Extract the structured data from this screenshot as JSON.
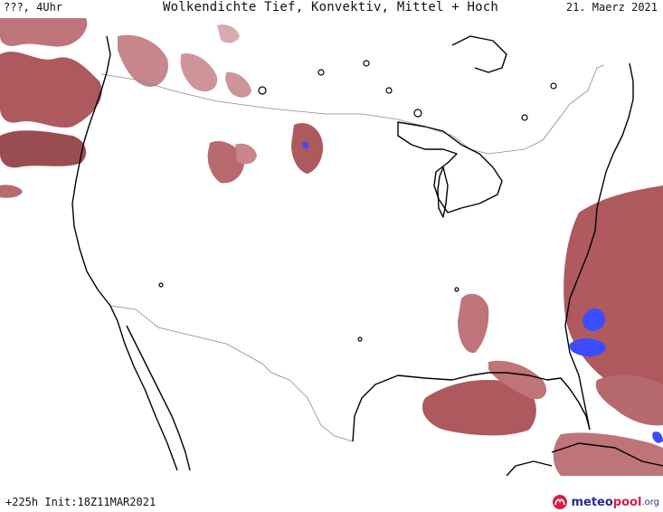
{
  "header": {
    "left": "???, 4Uhr",
    "title": "Wolkendichte  Tief, Konvektiv, Mittel + Hoch",
    "date": "21. Maerz 2021"
  },
  "footer": {
    "init": "+225h  Init:18Z11MAR2021",
    "logo_part1": "meteo",
    "logo_part2": "pool",
    "logo_part3": ".org"
  },
  "colors": {
    "cloud_dark": "#8e3a3f",
    "cloud_mid": "#b05a5e",
    "cloud_light": "#d5a3a6",
    "convective": "#3c4cff",
    "coast": "#000000",
    "border": "#8a8a8a"
  }
}
